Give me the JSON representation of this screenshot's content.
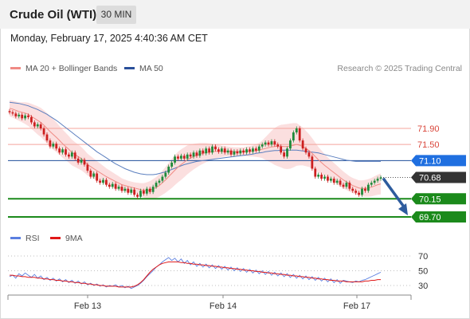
{
  "header": {
    "title": "Crude Oil (WTI)",
    "timeframe": "30 MIN"
  },
  "datetime": "Monday, February 17, 2025 4:40:36 AM CET",
  "legend": {
    "ma20_label": "MA 20 + Bollinger Bands",
    "ma50_label": "MA 50",
    "credit": "Research © 2025 Trading Central"
  },
  "rsi_legend": {
    "rsi_label": "RSI",
    "ma_label": "9MA"
  },
  "colors": {
    "resistance": "#f4a59c",
    "support": "#1b8a1b",
    "pivot": "#1f4e99",
    "last_price": "#333333",
    "ma20": "#f08a84",
    "ma50": "#5b7fbf",
    "band_fill": "#fbdcdc",
    "candle_up": "#1f8a3a",
    "candle_down": "#cc1f1f",
    "rsi": "#5b7fe0",
    "rsi_ma": "#e01818",
    "arrow": "#2e5c9e"
  },
  "chart_data": [
    {
      "type": "candlestick",
      "x_ticks": [
        "Feb 13",
        "Feb 14",
        "Feb 17"
      ],
      "levels": [
        {
          "label": "71.90",
          "value": 71.9,
          "kind": "resistance"
        },
        {
          "label": "71.50",
          "value": 71.5,
          "kind": "resistance"
        },
        {
          "label": "71.10",
          "value": 71.1,
          "kind": "pivot"
        },
        {
          "label": "70.68",
          "value": 70.68,
          "kind": "last"
        },
        {
          "label": "70.15",
          "value": 70.15,
          "kind": "support"
        },
        {
          "label": "69.70",
          "value": 69.7,
          "kind": "support"
        }
      ],
      "close": [
        72.3,
        72.27,
        72.2,
        72.24,
        72.15,
        72.22,
        72.18,
        72.05,
        71.95,
        72.0,
        71.9,
        71.75,
        71.6,
        71.45,
        71.52,
        71.4,
        71.3,
        71.38,
        71.25,
        71.2,
        71.3,
        71.15,
        71.05,
        71.12,
        71.0,
        70.85,
        70.7,
        70.78,
        70.6,
        70.55,
        70.62,
        70.5,
        70.45,
        70.52,
        70.4,
        70.45,
        70.35,
        70.4,
        70.3,
        70.38,
        70.25,
        70.2,
        70.35,
        70.28,
        70.4,
        70.32,
        70.45,
        70.55,
        70.6,
        70.7,
        70.8,
        70.95,
        71.05,
        71.2,
        71.15,
        71.22,
        71.15,
        71.25,
        71.2,
        71.3,
        71.22,
        71.35,
        71.28,
        71.4,
        71.3,
        71.45,
        71.38,
        71.32,
        71.4,
        71.3,
        71.35,
        71.25,
        71.33,
        71.28,
        71.35,
        71.3,
        71.38,
        71.32,
        71.4,
        71.35,
        71.45,
        71.5,
        71.55,
        71.5,
        71.58,
        71.5,
        71.45,
        71.3,
        71.2,
        71.4,
        71.6,
        71.8,
        71.9,
        71.6,
        71.4,
        71.3,
        71.2,
        70.9,
        70.7,
        70.75,
        70.65,
        70.7,
        70.6,
        70.65,
        70.55,
        70.6,
        70.5,
        70.45,
        70.55,
        70.4,
        70.35,
        70.3,
        70.25,
        70.4,
        70.35,
        70.5,
        70.55,
        70.6,
        70.65,
        70.68
      ],
      "ma20": [
        72.4,
        72.38,
        72.35,
        72.32,
        72.3,
        72.28,
        72.25,
        72.2,
        72.15,
        72.1,
        72.05,
        71.98,
        71.9,
        71.82,
        71.75,
        71.68,
        71.6,
        71.52,
        71.45,
        71.38,
        71.3,
        71.25,
        71.2,
        71.15,
        71.08,
        71.0,
        70.95,
        70.9,
        70.85,
        70.8,
        70.75,
        70.7,
        70.66,
        70.62,
        70.58,
        70.54,
        70.5,
        70.48,
        70.46,
        70.44,
        70.42,
        70.4,
        70.38,
        70.36,
        70.36,
        70.37,
        70.4,
        70.43,
        70.48,
        70.55,
        70.62,
        70.7,
        70.78,
        70.86,
        70.94,
        71.0,
        71.06,
        71.12,
        71.16,
        71.2,
        71.23,
        71.26,
        71.28,
        71.3,
        71.31,
        71.32,
        71.33,
        71.33,
        71.33,
        71.33,
        71.33,
        71.33,
        71.32,
        71.32,
        71.32,
        71.32,
        71.33,
        71.33,
        71.34,
        71.35,
        71.36,
        71.38,
        71.4,
        71.42,
        71.44,
        71.45,
        71.46,
        71.46,
        71.45,
        71.45,
        71.46,
        71.48,
        71.5,
        71.48,
        71.45,
        71.4,
        71.35,
        71.28,
        71.2,
        71.12,
        71.05,
        70.98,
        70.92,
        70.86,
        70.8,
        70.74,
        70.68,
        70.62,
        70.57,
        70.52,
        70.48,
        70.45,
        70.42,
        70.41,
        70.41,
        70.42,
        70.44,
        70.47,
        70.5,
        70.52
      ],
      "ma50": [
        72.55,
        72.54,
        72.53,
        72.52,
        72.5,
        72.48,
        72.46,
        72.43,
        72.4,
        72.37,
        72.33,
        72.29,
        72.25,
        72.2,
        72.15,
        72.1,
        72.04,
        71.98,
        71.92,
        71.86,
        71.8,
        71.74,
        71.68,
        71.62,
        71.56,
        71.5,
        71.44,
        71.38,
        71.32,
        71.27,
        71.22,
        71.17,
        71.12,
        71.07,
        71.02,
        70.98,
        70.94,
        70.9,
        70.87,
        70.84,
        70.81,
        70.79,
        70.77,
        70.76,
        70.75,
        70.75,
        70.75,
        70.76,
        70.78,
        70.8,
        70.82,
        70.85,
        70.88,
        70.91,
        70.94,
        70.97,
        71.0,
        71.02,
        71.04,
        71.06,
        71.08,
        71.09,
        71.1,
        71.11,
        71.12,
        71.13,
        71.14,
        71.15,
        71.16,
        71.17,
        71.18,
        71.19,
        71.2,
        71.21,
        71.22,
        71.23,
        71.24,
        71.25,
        71.26,
        71.28,
        71.29,
        71.3,
        71.32,
        71.33,
        71.34,
        71.35,
        71.35,
        71.36,
        71.36,
        71.36,
        71.36,
        71.36,
        71.36,
        71.35,
        71.34,
        71.33,
        71.32,
        71.31,
        71.3,
        71.29,
        71.27,
        71.25,
        71.23,
        71.21,
        71.19,
        71.17,
        71.15,
        71.13,
        71.11,
        71.1,
        71.09,
        71.08,
        71.08,
        71.08,
        71.08,
        71.08,
        71.08,
        71.08,
        71.08,
        71.08
      ],
      "band_half_width": [
        0.2,
        0.21,
        0.22,
        0.23,
        0.25,
        0.27,
        0.29,
        0.31,
        0.33,
        0.35,
        0.36,
        0.37,
        0.38,
        0.38,
        0.38,
        0.37,
        0.36,
        0.35,
        0.34,
        0.33,
        0.32,
        0.31,
        0.3,
        0.29,
        0.28,
        0.27,
        0.26,
        0.25,
        0.24,
        0.23,
        0.22,
        0.21,
        0.2,
        0.19,
        0.18,
        0.17,
        0.16,
        0.15,
        0.14,
        0.14,
        0.14,
        0.15,
        0.16,
        0.18,
        0.2,
        0.22,
        0.24,
        0.26,
        0.28,
        0.3,
        0.32,
        0.34,
        0.36,
        0.37,
        0.38,
        0.38,
        0.37,
        0.36,
        0.34,
        0.32,
        0.3,
        0.28,
        0.26,
        0.24,
        0.22,
        0.2,
        0.18,
        0.16,
        0.14,
        0.13,
        0.12,
        0.11,
        0.11,
        0.11,
        0.11,
        0.11,
        0.12,
        0.13,
        0.14,
        0.16,
        0.18,
        0.22,
        0.28,
        0.34,
        0.4,
        0.46,
        0.5,
        0.53,
        0.55,
        0.56,
        0.56,
        0.55,
        0.53,
        0.5,
        0.47,
        0.44,
        0.41,
        0.38,
        0.35,
        0.32,
        0.3,
        0.28,
        0.26,
        0.25,
        0.24,
        0.23,
        0.22,
        0.21,
        0.2,
        0.19,
        0.19,
        0.19,
        0.19,
        0.2,
        0.21,
        0.22,
        0.23,
        0.24,
        0.25,
        0.26
      ],
      "forecast": {
        "from": 70.68,
        "to": 69.7
      }
    },
    {
      "type": "line",
      "name": "RSI",
      "y_ticks": [
        30,
        50,
        70
      ],
      "ylim": [
        20,
        80
      ],
      "rsi": [
        42,
        44,
        40,
        46,
        43,
        47,
        44,
        41,
        45,
        40,
        43,
        38,
        41,
        37,
        40,
        36,
        39,
        35,
        38,
        34,
        37,
        33,
        36,
        32,
        35,
        31,
        33,
        30,
        32,
        29,
        31,
        28,
        30,
        29,
        31,
        28,
        30,
        27,
        29,
        26,
        28,
        30,
        33,
        37,
        42,
        46,
        50,
        55,
        58,
        62,
        65,
        68,
        64,
        67,
        62,
        66,
        60,
        64,
        58,
        62,
        56,
        60,
        55,
        59,
        54,
        58,
        53,
        57,
        52,
        56,
        51,
        55,
        50,
        54,
        49,
        53,
        48,
        52,
        47,
        51,
        46,
        50,
        45,
        49,
        44,
        48,
        43,
        47,
        42,
        46,
        41,
        45,
        40,
        44,
        39,
        43,
        38,
        42,
        37,
        41,
        36,
        40,
        35,
        39,
        34,
        38,
        33,
        37,
        36,
        35,
        34,
        36,
        35,
        37,
        38,
        40,
        42,
        44,
        46,
        48
      ],
      "rsi_ma": [
        44,
        44,
        43,
        43,
        42,
        42,
        41,
        41,
        41,
        40,
        40,
        39,
        39,
        38,
        38,
        37,
        37,
        36,
        36,
        35,
        35,
        34,
        34,
        33,
        33,
        32,
        32,
        31,
        31,
        30,
        30,
        29,
        29,
        29,
        29,
        28,
        28,
        28,
        28,
        28,
        29,
        31,
        34,
        38,
        43,
        48,
        52,
        55,
        58,
        60,
        61,
        62,
        62,
        62,
        62,
        61,
        61,
        60,
        60,
        59,
        59,
        58,
        58,
        57,
        57,
        56,
        56,
        55,
        55,
        54,
        54,
        53,
        53,
        52,
        52,
        51,
        51,
        50,
        50,
        49,
        49,
        48,
        48,
        47,
        47,
        46,
        46,
        45,
        45,
        44,
        44,
        43,
        43,
        42,
        42,
        41,
        41,
        40,
        40,
        39,
        39,
        38,
        38,
        37,
        37,
        36,
        36,
        36,
        35,
        35,
        35,
        35,
        35,
        35,
        36,
        36,
        37,
        37,
        38,
        38
      ]
    }
  ]
}
